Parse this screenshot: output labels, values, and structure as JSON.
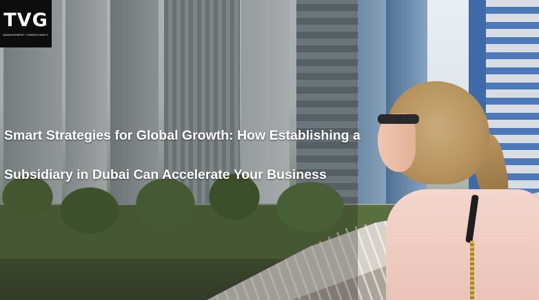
{
  "brand": {
    "logo_mark": "TVG",
    "logo_subtitle": "Management Consultancy"
  },
  "hero": {
    "headline_line1": "Smart Strategies for Global Growth: How Establishing a",
    "headline_line2": "Subsidiary in Dubai Can Accelerate Your Business"
  },
  "colors": {
    "logo_background": "#0d0d0d",
    "text": "#ffffff"
  }
}
